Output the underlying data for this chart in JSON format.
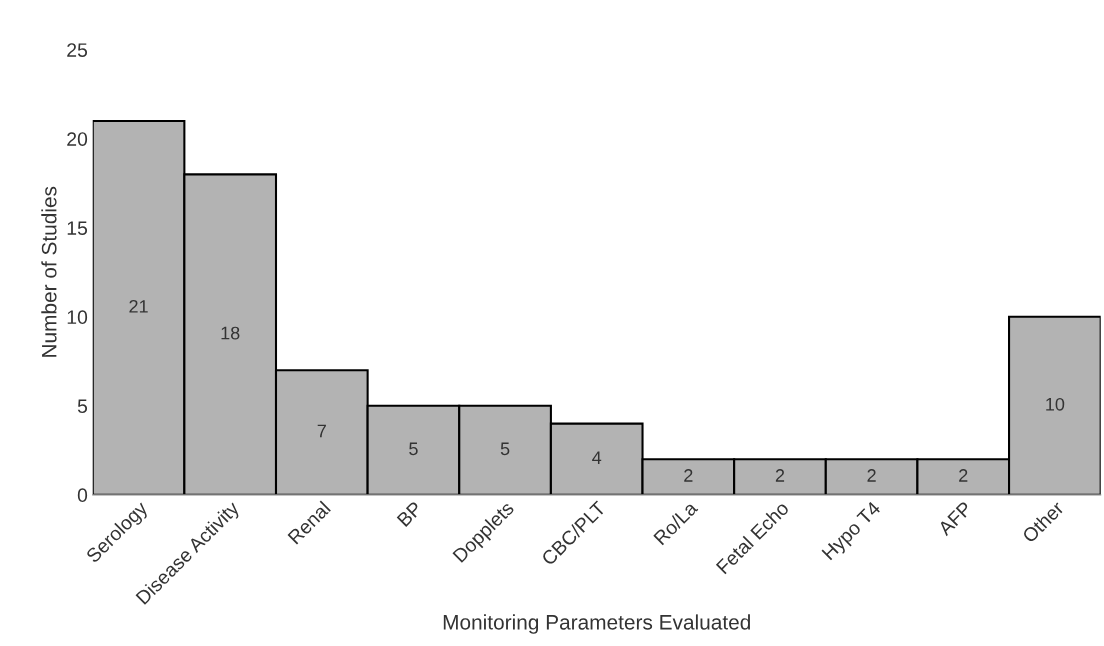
{
  "chart_data": {
    "type": "bar",
    "categories": [
      "Serology",
      "Disease Activity",
      "Renal",
      "BP",
      "Dopplets",
      "CBC/PLT",
      "Ro/La",
      "Fetal Echo",
      "Hypo T4",
      "AFP",
      "Other"
    ],
    "values": [
      21,
      18,
      7,
      5,
      5,
      4,
      2,
      2,
      2,
      2,
      10
    ],
    "color": "#b3b3b3",
    "xlabel": "Monitoring Parameters Evaluated",
    "ylabel": "Number of Studies",
    "ylim": [
      0,
      25
    ],
    "yticks": [
      0,
      5,
      10,
      15,
      20,
      25
    ],
    "grid": false,
    "data_labels": true
  }
}
